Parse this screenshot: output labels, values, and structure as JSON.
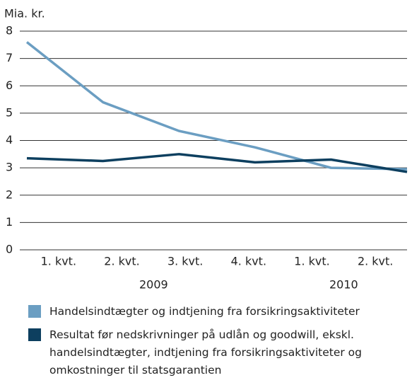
{
  "chart_data": {
    "type": "line",
    "y_label": "Mia. kr.",
    "categories": [
      "1. kvt.",
      "2. kvt.",
      "3. kvt.",
      "4. kvt.",
      "1. kvt.",
      "2. kvt."
    ],
    "groups": [
      {
        "label": "2009",
        "categories": 4
      },
      {
        "label": "2010",
        "categories": 2
      }
    ],
    "series": [
      {
        "name": "Handelsindtægter og indtjening fra forsikringsaktiviteter",
        "color": "#6b9ec2",
        "values": [
          7.6,
          5.4,
          4.35,
          3.75,
          3.0,
          2.95
        ]
      },
      {
        "name": "Resultat før nedskrivninger på udlån og goodwill, ekskl. handelsindtægter, indtjening fra forsikringsaktiviteter og omkostninger til statsgarantien",
        "color": "#0d3f5f",
        "values": [
          3.35,
          3.25,
          3.5,
          3.2,
          3.3,
          2.85
        ]
      }
    ],
    "ylim": [
      0,
      8
    ],
    "yticks": [
      0,
      1,
      2,
      3,
      4,
      5,
      6,
      7,
      8
    ],
    "grid": true
  }
}
